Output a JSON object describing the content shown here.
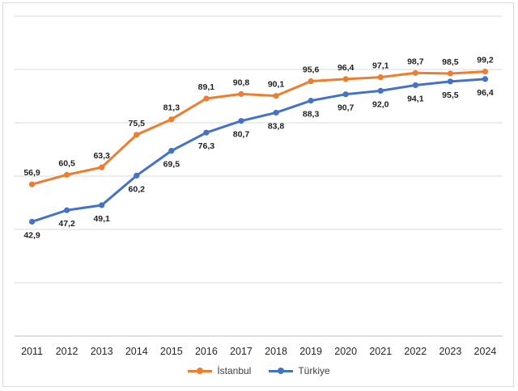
{
  "chart_data": {
    "type": "line",
    "categories": [
      "2011",
      "2012",
      "2013",
      "2014",
      "2015",
      "2016",
      "2017",
      "2018",
      "2019",
      "2020",
      "2021",
      "2022",
      "2023",
      "2024"
    ],
    "series": [
      {
        "name": "İstanbul",
        "color": "#ED7D31",
        "values": [
          56.9,
          60.5,
          63.3,
          75.5,
          81.3,
          89.1,
          90.8,
          90.1,
          95.6,
          96.4,
          97.1,
          98.7,
          98.5,
          99.2
        ],
        "labels": [
          "56,9",
          "60,5",
          "63,3",
          "75,5",
          "81,3",
          "89,1",
          "90,8",
          "90,1",
          "95,6",
          "96,4",
          "97,1",
          "98,7",
          "98,5",
          "99,2"
        ]
      },
      {
        "name": "Türkiye",
        "color": "#4472C4",
        "values": [
          42.9,
          47.2,
          49.1,
          60.2,
          69.5,
          76.3,
          80.7,
          83.8,
          88.3,
          90.7,
          92.0,
          94.1,
          95.5,
          96.4
        ],
        "labels": [
          "42,9",
          "47,2",
          "49,1",
          "60,2",
          "69,5",
          "76,3",
          "80,7",
          "83,8",
          "88,3",
          "90,7",
          "92,0",
          "94,1",
          "95,5",
          "96,4"
        ]
      }
    ],
    "ylim": [
      0,
      120
    ],
    "grid": true,
    "legend_position": "bottom"
  }
}
